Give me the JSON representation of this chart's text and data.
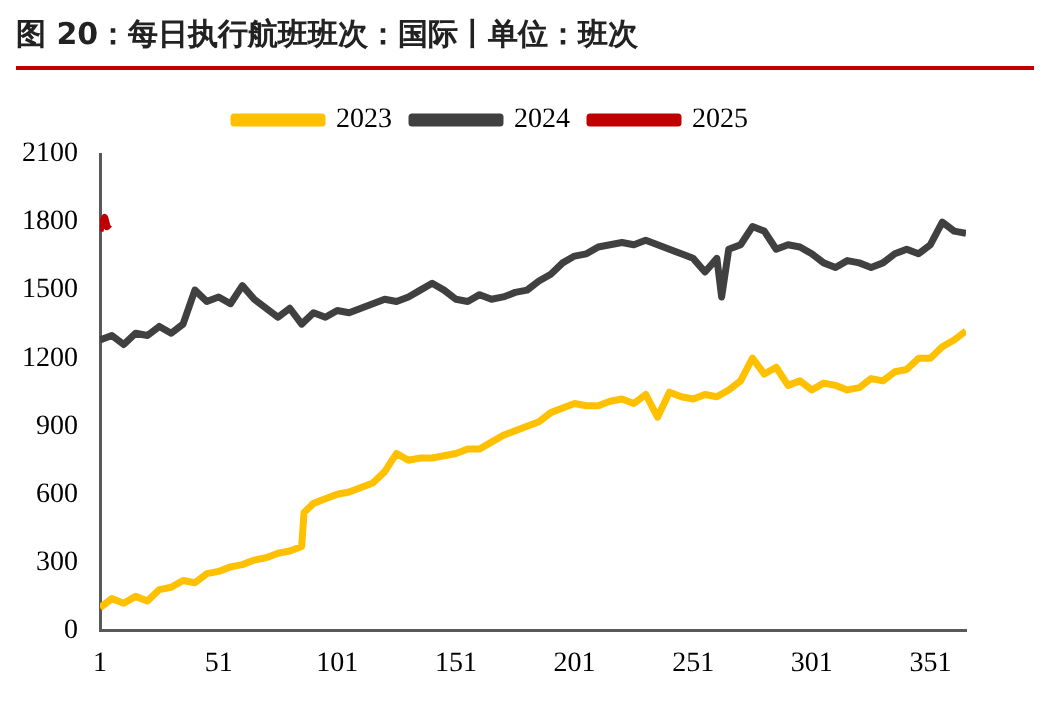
{
  "chart_data": {
    "type": "line",
    "title": "图 20：每日执行航班班次：国际丨单位：班次",
    "xlim": [
      1,
      366
    ],
    "xticks": [
      1,
      51,
      101,
      151,
      201,
      251,
      301,
      351
    ],
    "ylim": [
      0,
      2100
    ],
    "yticks": [
      0,
      300,
      600,
      900,
      1200,
      1500,
      1800,
      2100
    ],
    "grid": false,
    "legend": "top",
    "marker": "none",
    "line_style": "solid",
    "series": [
      {
        "name": "2023",
        "color": "#ffc000",
        "x": [
          1,
          6,
          11,
          16,
          21,
          26,
          31,
          36,
          41,
          46,
          51,
          56,
          61,
          66,
          71,
          76,
          81,
          86,
          87,
          91,
          96,
          101,
          106,
          111,
          116,
          121,
          126,
          131,
          136,
          141,
          146,
          151,
          156,
          161,
          166,
          171,
          176,
          181,
          186,
          191,
          196,
          201,
          206,
          211,
          216,
          221,
          226,
          231,
          236,
          241,
          246,
          251,
          256,
          261,
          266,
          271,
          276,
          281,
          286,
          291,
          296,
          301,
          306,
          311,
          316,
          321,
          326,
          331,
          336,
          341,
          346,
          351,
          356,
          361,
          366
        ],
        "values": [
          100,
          140,
          120,
          150,
          130,
          180,
          190,
          220,
          210,
          250,
          260,
          280,
          290,
          310,
          320,
          340,
          350,
          370,
          520,
          560,
          580,
          600,
          610,
          630,
          650,
          700,
          780,
          750,
          760,
          760,
          770,
          780,
          800,
          800,
          830,
          860,
          880,
          900,
          920,
          960,
          980,
          1000,
          990,
          990,
          1010,
          1020,
          1000,
          1040,
          940,
          1050,
          1030,
          1020,
          1040,
          1030,
          1060,
          1100,
          1200,
          1130,
          1160,
          1080,
          1100,
          1060,
          1090,
          1080,
          1060,
          1070,
          1110,
          1100,
          1140,
          1150,
          1200,
          1200,
          1250,
          1280,
          1320
        ]
      },
      {
        "name": "2024",
        "color": "#404040",
        "x": [
          1,
          6,
          11,
          16,
          21,
          26,
          31,
          36,
          41,
          46,
          51,
          56,
          61,
          66,
          71,
          76,
          81,
          86,
          91,
          96,
          101,
          106,
          111,
          116,
          121,
          126,
          131,
          136,
          141,
          146,
          151,
          156,
          161,
          166,
          171,
          176,
          181,
          186,
          191,
          196,
          201,
          206,
          211,
          216,
          221,
          226,
          231,
          236,
          241,
          246,
          251,
          256,
          261,
          263,
          266,
          271,
          276,
          281,
          286,
          291,
          296,
          301,
          306,
          311,
          316,
          321,
          326,
          331,
          336,
          341,
          346,
          351,
          356,
          361,
          366
        ],
        "values": [
          1280,
          1300,
          1260,
          1310,
          1300,
          1340,
          1310,
          1350,
          1500,
          1450,
          1470,
          1440,
          1520,
          1460,
          1420,
          1380,
          1420,
          1350,
          1400,
          1380,
          1410,
          1400,
          1420,
          1440,
          1460,
          1450,
          1470,
          1500,
          1530,
          1500,
          1460,
          1450,
          1480,
          1460,
          1470,
          1490,
          1500,
          1540,
          1570,
          1620,
          1650,
          1660,
          1690,
          1700,
          1710,
          1700,
          1720,
          1700,
          1680,
          1660,
          1640,
          1580,
          1640,
          1470,
          1680,
          1700,
          1780,
          1760,
          1680,
          1700,
          1690,
          1660,
          1620,
          1600,
          1630,
          1620,
          1600,
          1620,
          1660,
          1680,
          1660,
          1700,
          1800,
          1760,
          1750
        ]
      },
      {
        "name": "2025",
        "color": "#c00000",
        "x": [
          1,
          2,
          3,
          4,
          5
        ],
        "values": [
          1760,
          1800,
          1820,
          1780,
          1790
        ]
      }
    ]
  }
}
